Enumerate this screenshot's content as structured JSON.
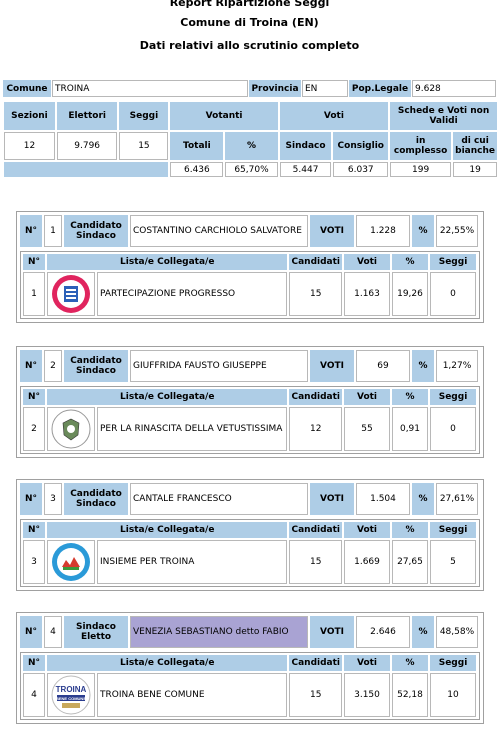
{
  "header": {
    "title": "Report Ripartizione Seggi",
    "subtitle": "Comune di Troina (EN)",
    "subtitle2": "Dati relativi allo scrutinio completo"
  },
  "summary": {
    "comune_label": "Comune",
    "comune_value": "TROINA",
    "provincia_label": "Provincia",
    "provincia_value": "EN",
    "pop_label": "Pop.Legale",
    "pop_value": "9.628",
    "sezioni_label": "Sezioni",
    "elettori_label": "Elettori",
    "seggi_label": "Seggi",
    "votanti_label": "Votanti",
    "voti_label": "Voti",
    "schede_label": "Schede e Voti non Validi",
    "sezioni": "12",
    "elettori": "9.796",
    "seggi": "15",
    "totali_label": "Totali",
    "perc_label": "%",
    "sindaco_label": "Sindaco",
    "consiglio_label": "Consiglio",
    "complesso_label": "in complesso",
    "bianche_label": "di cui bianche",
    "totali": "6.436",
    "perc": "65,70%",
    "sindaco": "5.447",
    "consiglio": "6.037",
    "complesso": "199",
    "bianche": "19"
  },
  "labels": {
    "n": "N°",
    "candidato_sindaco": "Candidato Sindaco",
    "sindaco_eletto": "Sindaco Eletto",
    "voti_caps": "VOTI",
    "percent": "%",
    "lista": "Lista/e Collegata/e",
    "candidati": "Candidati",
    "voti": "Voti",
    "seggi": "Seggi"
  },
  "candidates": [
    {
      "n": "1",
      "role": "Candidato Sindaco",
      "name": "COSTANTINO CARCHIOLO SALVATORE",
      "voti": "1.228",
      "perc": "22,55%",
      "list": {
        "n": "1",
        "name": "PARTECIPAZIONE PROGRESSO",
        "candidati": "15",
        "voti": "1.163",
        "perc": "19,26",
        "seggi": "0",
        "logo_text": "PARTECIPAZIONE PROGRESSO",
        "logo_color": "#e0245e"
      }
    },
    {
      "n": "2",
      "role": "Candidato Sindaco",
      "name": "GIUFFRIDA FAUSTO GIUSEPPE",
      "voti": "69",
      "perc": "1,27%",
      "list": {
        "n": "2",
        "name": "PER LA RINASCITA DELLA VETUSTISSIMA",
        "candidati": "12",
        "voti": "55",
        "perc": "0,91",
        "seggi": "0",
        "logo_text": "",
        "logo_color": "#6a8a5a"
      }
    },
    {
      "n": "3",
      "role": "Candidato Sindaco",
      "name": "CANTALE FRANCESCO",
      "voti": "1.504",
      "perc": "27,61%",
      "list": {
        "n": "3",
        "name": "INSIEME PER TROINA",
        "candidati": "15",
        "voti": "1.669",
        "perc": "27,65",
        "seggi": "5",
        "logo_text": "",
        "logo_color": "#2a9ad8"
      }
    },
    {
      "n": "4",
      "role": "Sindaco Eletto",
      "name": "VENEZIA SEBASTIANO detto FABIO",
      "voti": "2.646",
      "perc": "48,58%",
      "list": {
        "n": "4",
        "name": "TROINA BENE COMUNE",
        "candidati": "15",
        "voti": "3.150",
        "perc": "52,18",
        "seggi": "10",
        "logo_text": "TROINA BENE COMUNE",
        "logo_color": "#2b3d8f"
      }
    }
  ],
  "colors": {
    "header_bg": "#aecde6",
    "elected_bg": "#a9a3d3"
  }
}
